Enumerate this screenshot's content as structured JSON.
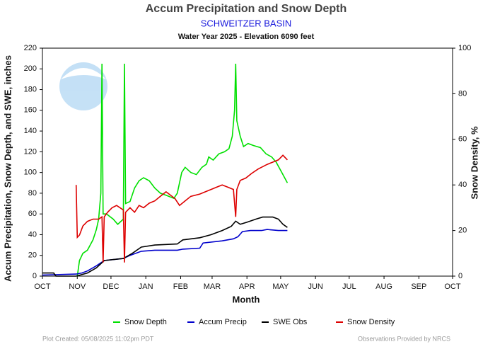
{
  "chart_data": {
    "type": "line",
    "title": "Accum Precipitation and Snow Depth",
    "subtitle": "SCHWEITZER BASIN",
    "subtitle2": "Water Year 2025 -  Elevation 6090 feet",
    "xlabel": "Month",
    "ylabel": "Accum Precipitation, Snow Depth, and SWE, inches",
    "y2label": "Snow Density, %",
    "footer_left": "Plot Created: 05/08/2025 11:02pm PDT",
    "footer_right": "Observations Provided by NRCS",
    "xlim": [
      0,
      365
    ],
    "xticks": [
      {
        "value": 0,
        "label": "OCT"
      },
      {
        "value": 31,
        "label": "NOV"
      },
      {
        "value": 61,
        "label": "DEC"
      },
      {
        "value": 92,
        "label": "JAN"
      },
      {
        "value": 123,
        "label": "FEB"
      },
      {
        "value": 151,
        "label": "MAR"
      },
      {
        "value": 182,
        "label": "APR"
      },
      {
        "value": 212,
        "label": "MAY"
      },
      {
        "value": 243,
        "label": "JUN"
      },
      {
        "value": 273,
        "label": "JUL"
      },
      {
        "value": 304,
        "label": "AUG"
      },
      {
        "value": 335,
        "label": "SEP"
      },
      {
        "value": 365,
        "label": "OCT"
      }
    ],
    "ylim": [
      0,
      220
    ],
    "yticks": [
      0,
      20,
      40,
      60,
      80,
      100,
      120,
      140,
      160,
      180,
      200,
      220
    ],
    "y2lim": [
      0,
      100
    ],
    "y2ticks": [
      0,
      20,
      40,
      60,
      80,
      100
    ],
    "legend": "bottom",
    "series": [
      {
        "name": "Snow Depth",
        "color": "#00e000",
        "x": [
          31,
          33,
          36,
          40,
          45,
          48,
          50,
          52,
          53,
          54,
          57,
          63,
          67,
          72,
          73,
          74,
          78,
          82,
          86,
          90,
          95,
          100,
          105,
          110,
          117,
          120,
          124,
          127,
          132,
          137,
          142,
          146,
          148,
          152,
          157,
          162,
          166,
          169,
          171,
          172,
          173,
          176,
          179,
          183,
          188,
          194,
          199,
          204,
          208,
          213,
          218
        ],
        "values": [
          0,
          15,
          22,
          25,
          35,
          45,
          55,
          80,
          205,
          60,
          60,
          55,
          50,
          55,
          205,
          70,
          72,
          85,
          92,
          95,
          92,
          85,
          80,
          78,
          75,
          80,
          100,
          105,
          100,
          98,
          105,
          108,
          115,
          112,
          118,
          120,
          123,
          135,
          160,
          205,
          150,
          135,
          125,
          128,
          126,
          124,
          118,
          115,
          110,
          100,
          90
        ]
      },
      {
        "name": "Accum Precip",
        "color": "#0000cc",
        "x": [
          0,
          30,
          35,
          40,
          48,
          55,
          72,
          78,
          88,
          100,
          120,
          125,
          140,
          143,
          160,
          170,
          174,
          178,
          185,
          195,
          200,
          210,
          218
        ],
        "values": [
          1,
          2,
          3,
          5,
          10,
          15,
          17,
          20,
          24,
          25,
          25,
          26,
          27,
          32,
          34,
          36,
          38,
          43,
          44,
          44,
          45,
          44,
          44
        ]
      },
      {
        "name": "SWE Obs",
        "color": "#000000",
        "x": [
          0,
          10,
          12,
          30,
          40,
          48,
          55,
          72,
          80,
          88,
          100,
          120,
          125,
          140,
          150,
          160,
          168,
          172,
          176,
          182,
          190,
          196,
          205,
          210,
          214,
          218
        ],
        "values": [
          3,
          3,
          0,
          0,
          3,
          8,
          15,
          17,
          22,
          28,
          30,
          31,
          35,
          37,
          40,
          44,
          48,
          53,
          50,
          52,
          55,
          57,
          57,
          55,
          50,
          47
        ]
      },
      {
        "name": "Snow Density",
        "color": "#dd0000",
        "axis": "y2",
        "x": [
          30,
          31,
          33,
          36,
          40,
          45,
          50,
          53,
          54,
          55,
          58,
          62,
          66,
          72,
          73,
          74,
          78,
          82,
          86,
          90,
          95,
          100,
          105,
          110,
          118,
          122,
          127,
          132,
          140,
          145,
          150,
          155,
          160,
          165,
          170,
          172,
          173,
          176,
          181,
          186,
          192,
          200,
          205,
          210,
          214,
          218
        ],
        "values": [
          40,
          17,
          18,
          22,
          24,
          25,
          25,
          26,
          6,
          26,
          28,
          30,
          31,
          29,
          6,
          28,
          30,
          28,
          31,
          30,
          32,
          33,
          35,
          37,
          34,
          31,
          33,
          35,
          36,
          37,
          38,
          39,
          40,
          39,
          38,
          26,
          38,
          42,
          43,
          45,
          47,
          49,
          50,
          51,
          53,
          51
        ]
      }
    ]
  }
}
